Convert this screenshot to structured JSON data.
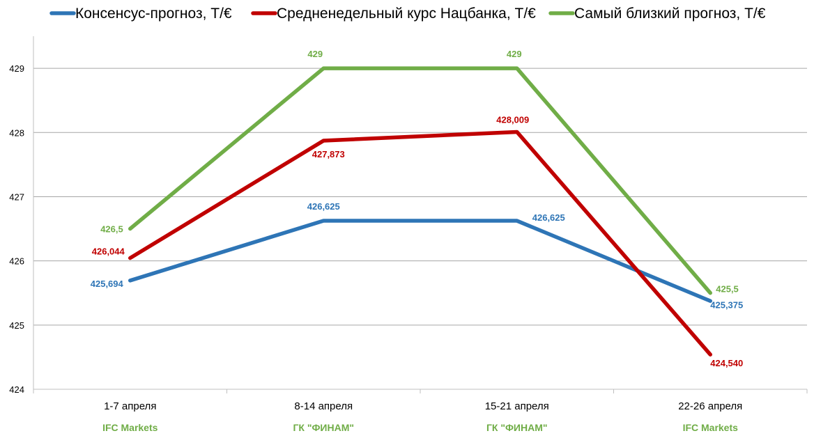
{
  "chart_data": {
    "type": "line",
    "title": "",
    "xlabel": "",
    "ylabel": "",
    "categories": [
      "1-7 апреля",
      "8-14 апреля",
      "15-21 апреля",
      "22-26 апреля"
    ],
    "category_sublabels": [
      "IFC Markets",
      "ГК \"ФИНАМ\"",
      "ГК \"ФИНАМ\"",
      "IFC Markets"
    ],
    "ylim": [
      424,
      429.5
    ],
    "yticks": [
      424,
      425,
      426,
      427,
      428,
      429
    ],
    "ytick_labels": [
      "424",
      "425",
      "426",
      "427",
      "428",
      "429"
    ],
    "grid": true,
    "legend_position": "top",
    "series": [
      {
        "name": "Консенсус-прогноз, Т/€",
        "color": "#2e75b6",
        "values": [
          425.694,
          426.625,
          426.625,
          425.375
        ],
        "labels": [
          "425,694",
          "426,625",
          "426,625",
          "425,375"
        ]
      },
      {
        "name": "Средненедельный курс Нацбанка, Т/€",
        "color": "#c00000",
        "values": [
          426.044,
          427.873,
          428.009,
          424.54
        ],
        "labels": [
          "426,044",
          "427,873",
          "428,009",
          "424,540"
        ]
      },
      {
        "name": "Самый близкий прогноз, Т/€",
        "color": "#70ad47",
        "values": [
          426.5,
          429,
          429,
          425.5
        ],
        "labels": [
          "426,5",
          "429",
          "429",
          "425,5"
        ]
      }
    ]
  }
}
